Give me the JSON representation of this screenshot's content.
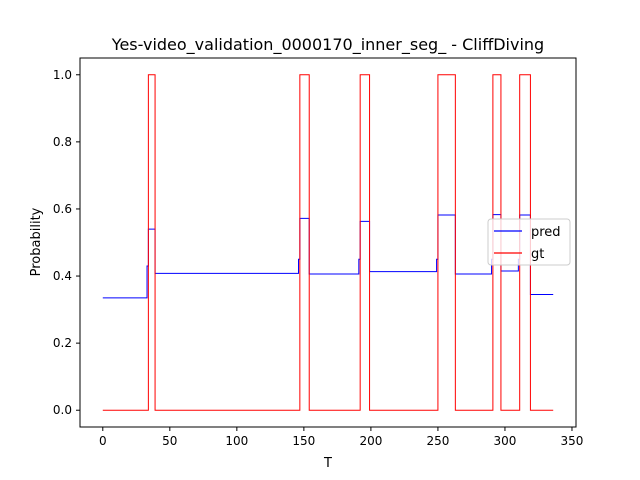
{
  "chart_data": {
    "type": "line",
    "title": "Yes-video_validation_0000170_inner_seg_ - CliffDiving",
    "xlabel": "T",
    "ylabel": "Probability",
    "xlim": [
      -17,
      353
    ],
    "ylim": [
      -0.05,
      1.05
    ],
    "xticks": [
      0,
      50,
      100,
      150,
      200,
      250,
      300,
      350
    ],
    "yticks": [
      0.0,
      0.2,
      0.4,
      0.6,
      0.8,
      1.0
    ],
    "xtick_labels": [
      "0",
      "50",
      "100",
      "150",
      "200",
      "250",
      "300",
      "350"
    ],
    "ytick_labels": [
      "0.0",
      "0.2",
      "0.4",
      "0.6",
      "0.8",
      "1.0"
    ],
    "grid": false,
    "legend_position": "center-right",
    "series": [
      {
        "name": "pred",
        "color": "#0000ff",
        "step": true,
        "x": [
          0,
          33,
          33,
          34,
          34,
          39,
          39,
          146,
          146,
          147,
          147,
          154,
          154,
          191,
          191,
          192,
          192,
          199,
          199,
          249,
          249,
          250,
          250,
          263,
          263,
          290,
          290,
          291,
          291,
          297,
          297,
          310,
          310,
          311,
          311,
          319,
          319,
          336
        ],
        "y": [
          0.335,
          0.335,
          0.43,
          0.43,
          0.54,
          0.54,
          0.408,
          0.408,
          0.45,
          0.45,
          0.572,
          0.572,
          0.406,
          0.406,
          0.45,
          0.45,
          0.563,
          0.563,
          0.413,
          0.413,
          0.45,
          0.45,
          0.582,
          0.582,
          0.406,
          0.406,
          0.45,
          0.45,
          0.583,
          0.583,
          0.415,
          0.415,
          0.45,
          0.45,
          0.582,
          0.582,
          0.345,
          0.345
        ]
      },
      {
        "name": "gt",
        "color": "#ff0000",
        "step": true,
        "x": [
          0,
          34,
          34,
          39,
          39,
          147,
          147,
          154,
          154,
          192,
          192,
          199,
          199,
          250,
          250,
          263,
          263,
          291,
          291,
          297,
          297,
          311,
          311,
          319,
          319,
          336
        ],
        "y": [
          0,
          0,
          1,
          1,
          0,
          0,
          1,
          1,
          0,
          0,
          1,
          1,
          0,
          0,
          1,
          1,
          0,
          0,
          1,
          1,
          0,
          0,
          1,
          1,
          0,
          0
        ]
      }
    ]
  }
}
